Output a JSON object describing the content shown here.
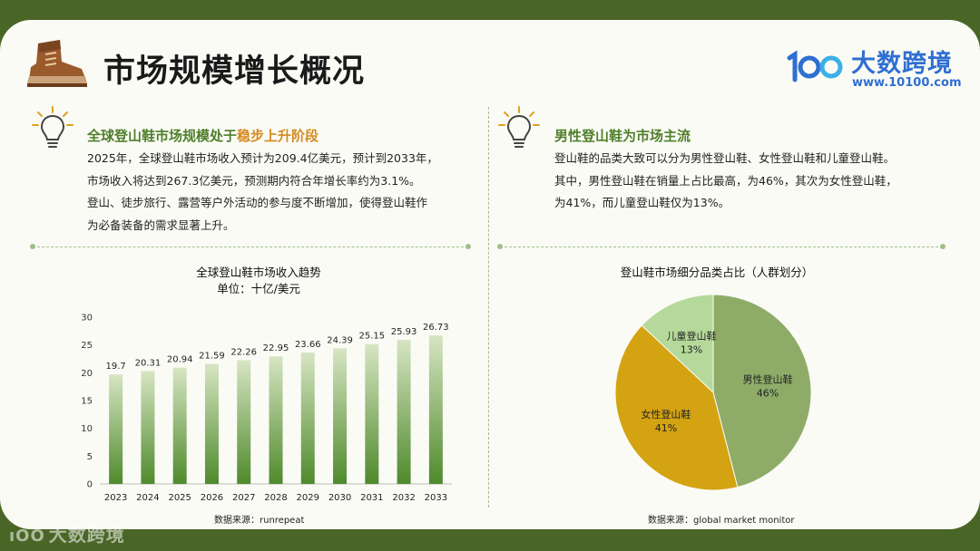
{
  "header": {
    "title": "市场规模增长概况",
    "logo_name": "大数跨境",
    "logo_url": "www.10100.com"
  },
  "left_section": {
    "heading_prefix": "全球登山鞋市场规模处于",
    "heading_highlight": "稳步上升阶段",
    "lines": [
      "2025年，全球登山鞋市场收入预计为209.4亿美元，预计到2033年，",
      "市场收入将达到267.3亿美元，预测期内符合年增长率约为3.1%。",
      "登山、徒步旅行、露营等户外活动的参与度不断增加，使得登山鞋作",
      "为必备装备的需求显著上升。"
    ]
  },
  "right_section": {
    "heading": "男性登山鞋为市场主流",
    "lines": [
      "登山鞋的品类大致可以分为男性登山鞋、女性登山鞋和儿童登山鞋。",
      "其中，男性登山鞋在销量上占比最高，为46%，其次为女性登山鞋，",
      "为41%，而儿童登山鞋仅为13%。"
    ]
  },
  "bar_chart_meta": {
    "title": "全球登山鞋市场收入趋势",
    "subtitle": "单位：十亿/美元",
    "source": "数据来源：runrepeat"
  },
  "pie_chart_meta": {
    "title": "登山鞋市场细分品类占比（人群划分）",
    "source": "数据来源：global market monitor"
  },
  "watermark": "大数跨境",
  "colors": {
    "title_green": "#4f7f2a",
    "highlight_orange": "#d48a1c",
    "bar_top": "#d7e5c3",
    "bar_bottom": "#4f8a2c",
    "pie_men": "#8eac68",
    "pie_women": "#d4a312",
    "pie_kids": "#b5d99a",
    "brand_blue": "#2f6fd1"
  },
  "chart_data": [
    {
      "type": "bar",
      "title": "全球登山鞋市场收入趋势",
      "subtitle": "单位：十亿/美元",
      "categories": [
        "2023",
        "2024",
        "2025",
        "2026",
        "2027",
        "2028",
        "2029",
        "2030",
        "2031",
        "2032",
        "2033"
      ],
      "values": [
        19.7,
        20.31,
        20.94,
        21.59,
        22.26,
        22.95,
        23.66,
        24.39,
        25.15,
        25.93,
        26.73
      ],
      "ylim": [
        0,
        30
      ],
      "yticks": [
        0,
        5,
        10,
        15,
        20,
        25,
        30
      ],
      "grid": false,
      "data_labels": true
    },
    {
      "type": "pie",
      "title": "登山鞋市场细分品类占比（人群划分）",
      "slices": [
        {
          "label": "男性登山鞋",
          "value": 46,
          "display": "46%",
          "color": "#8eac68"
        },
        {
          "label": "女性登山鞋",
          "value": 41,
          "display": "41%",
          "color": "#d4a312"
        },
        {
          "label": "儿童登山鞋",
          "value": 13,
          "display": "13%",
          "color": "#b5d99a"
        }
      ],
      "legend": "none",
      "data_labels": true
    }
  ]
}
